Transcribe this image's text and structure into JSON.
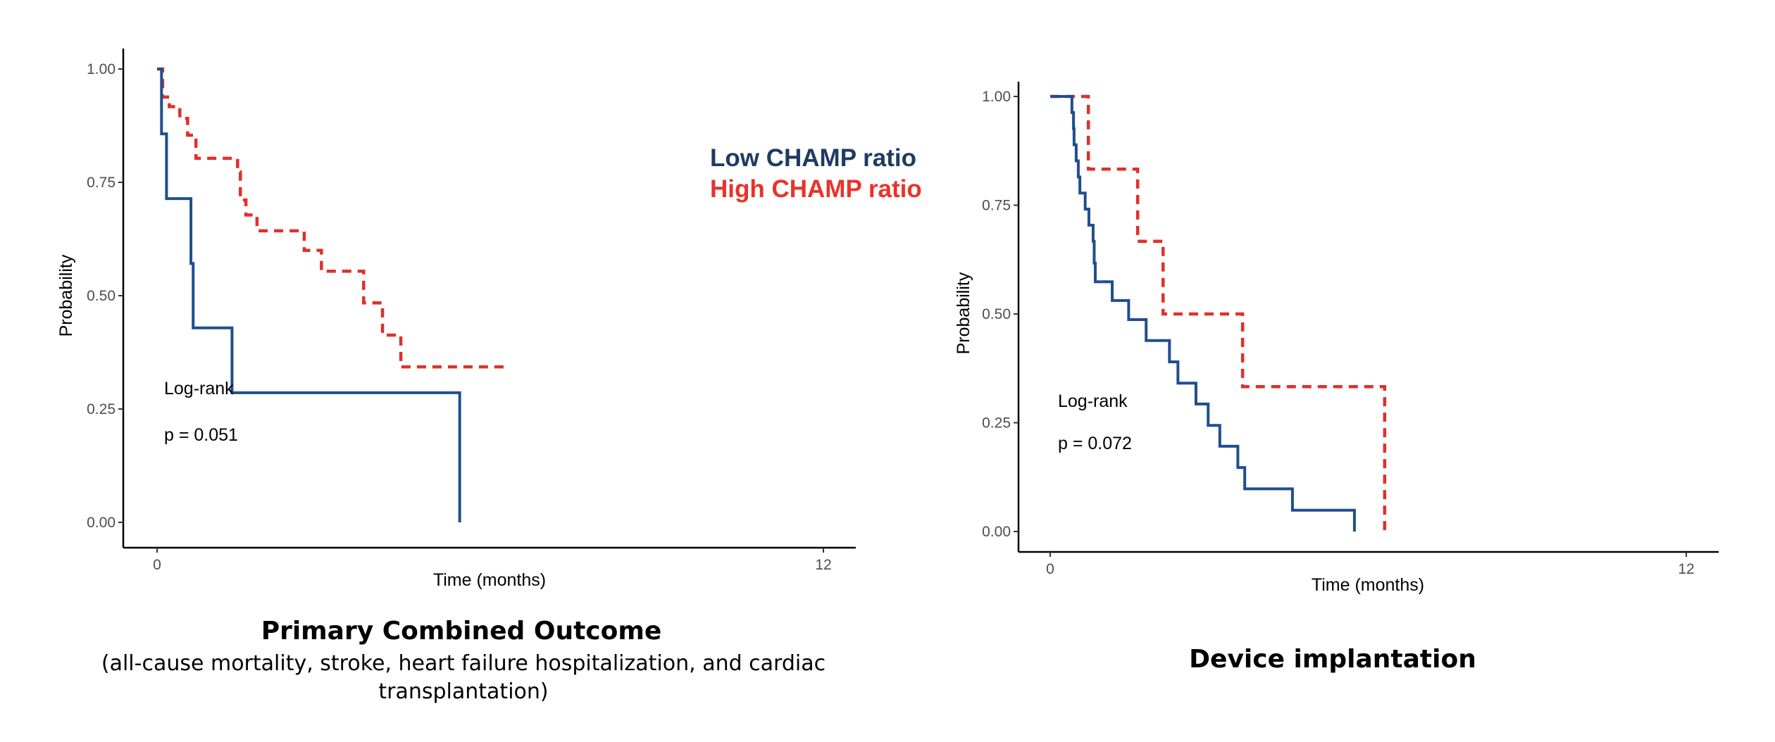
{
  "legend": {
    "items": [
      {
        "label": "Low CHAMP ratio",
        "color": "#1f3b63",
        "line_color": "#1f4e8f",
        "style": "solid"
      },
      {
        "label": "High CHAMP ratio",
        "color": "#e8332a",
        "line_color": "#e0302a",
        "style": "dashed"
      }
    ]
  },
  "chart_data": [
    {
      "type": "line",
      "subtype": "kaplan-meier step",
      "title": "Primary Combined Outcome",
      "subtitle_lines": [
        "(all-cause mortality, stroke, heart failure hospitalization, and cardiac",
        "transplantation)"
      ],
      "xlabel": "Time (months)",
      "ylabel": "Probability",
      "xlim": [
        0,
        12
      ],
      "ylim": [
        0,
        1
      ],
      "x_ticks": [
        0,
        12
      ],
      "x_tick_labels": [
        "0",
        "12"
      ],
      "y_ticks": [
        0,
        0.25,
        0.5,
        0.75,
        1.0
      ],
      "y_tick_labels": [
        "0.00",
        "0.25",
        "0.50",
        "0.75",
        "1.00"
      ],
      "grid": false,
      "annotation": {
        "line1": "Log-rank",
        "line2": "p = 0.051"
      },
      "series": [
        {
          "name": "Low CHAMP ratio",
          "style": "solid",
          "steps": [
            [
              0,
              1.0
            ],
            [
              0.08,
              0.857
            ],
            [
              0.17,
              0.714
            ],
            [
              0.61,
              0.571
            ],
            [
              0.65,
              0.429
            ],
            [
              1.35,
              0.286
            ],
            [
              5.45,
              0.0
            ]
          ],
          "end": 5.45
        },
        {
          "name": "High CHAMP ratio",
          "style": "dashed",
          "steps": [
            [
              0,
              1.0
            ],
            [
              0.1,
              0.938
            ],
            [
              0.22,
              0.917
            ],
            [
              0.41,
              0.891
            ],
            [
              0.55,
              0.854
            ],
            [
              0.7,
              0.803
            ],
            [
              1.45,
              0.773
            ],
            [
              1.5,
              0.711
            ],
            [
              1.6,
              0.678
            ],
            [
              1.8,
              0.643
            ],
            [
              2.65,
              0.6
            ],
            [
              2.96,
              0.554
            ],
            [
              3.72,
              0.484
            ],
            [
              4.06,
              0.413
            ],
            [
              4.39,
              0.343
            ]
          ],
          "end": 6.27
        }
      ]
    },
    {
      "type": "line",
      "subtype": "kaplan-meier step",
      "title": "Device implantation",
      "xlabel": "Time (months)",
      "ylabel": "Probability",
      "xlim": [
        0,
        12
      ],
      "ylim": [
        0,
        1
      ],
      "x_ticks": [
        0,
        12
      ],
      "x_tick_labels": [
        "0",
        "12"
      ],
      "y_ticks": [
        0,
        0.25,
        0.5,
        0.75,
        1.0
      ],
      "y_tick_labels": [
        "0.00",
        "0.25",
        "0.50",
        "0.75",
        "1.00"
      ],
      "grid": false,
      "annotation": {
        "line1": "Log-rank",
        "line2": "p = 0.072"
      },
      "series": [
        {
          "name": "Low CHAMP ratio",
          "style": "solid",
          "steps": [
            [
              0,
              1.0
            ],
            [
              0.41,
              0.963
            ],
            [
              0.44,
              0.926
            ],
            [
              0.45,
              0.889
            ],
            [
              0.49,
              0.852
            ],
            [
              0.53,
              0.815
            ],
            [
              0.56,
              0.778
            ],
            [
              0.66,
              0.741
            ],
            [
              0.73,
              0.704
            ],
            [
              0.81,
              0.667
            ],
            [
              0.83,
              0.617
            ],
            [
              0.85,
              0.574
            ],
            [
              1.17,
              0.531
            ],
            [
              1.48,
              0.487
            ],
            [
              1.81,
              0.439
            ],
            [
              2.25,
              0.39
            ],
            [
              2.41,
              0.341
            ],
            [
              2.75,
              0.293
            ],
            [
              2.98,
              0.244
            ],
            [
              3.2,
              0.196
            ],
            [
              3.54,
              0.147
            ],
            [
              3.67,
              0.098
            ],
            [
              4.57,
              0.049
            ],
            [
              5.74,
              0.0
            ]
          ],
          "end": 5.74
        },
        {
          "name": "High CHAMP ratio",
          "style": "dashed",
          "steps": [
            [
              0,
              1.0
            ],
            [
              0.72,
              0.833
            ],
            [
              1.65,
              0.667
            ],
            [
              2.13,
              0.5
            ],
            [
              3.63,
              0.333
            ],
            [
              6.31,
              0.0
            ]
          ],
          "end": 6.31
        }
      ]
    }
  ]
}
